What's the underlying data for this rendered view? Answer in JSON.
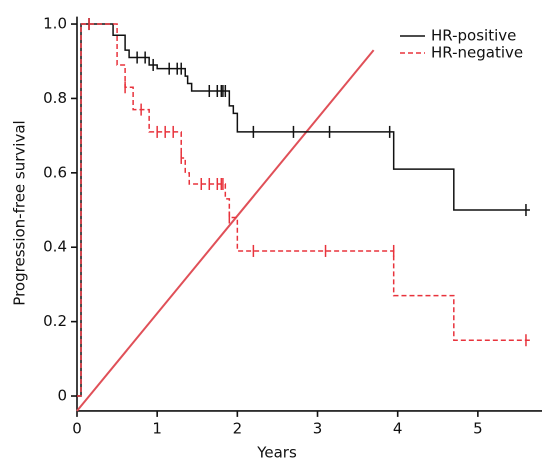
{
  "chart_data": {
    "type": "step",
    "x_label": "Years",
    "y_label": "Progression-free survival",
    "xlim": [
      0,
      5.8
    ],
    "ylim": [
      -0.04,
      1.02
    ],
    "xticks": [
      0,
      1,
      2,
      3,
      4,
      5
    ],
    "yticks": [
      0,
      {
        "value": 0.2,
        "label": "0.2"
      },
      {
        "value": 0.4,
        "label": "0.4"
      },
      {
        "value": 0.6,
        "label": "0.6"
      },
      {
        "value": 0.8,
        "label": "0.8"
      },
      {
        "value": 1,
        "label": "1.0"
      }
    ],
    "legend": "top-right",
    "series": [
      {
        "name": "HR-positive",
        "color": "#111111",
        "dash": false,
        "x": [
          0,
          0.05,
          0.45,
          0.6,
          0.65,
          0.9,
          1.0,
          1.35,
          1.38,
          1.43,
          1.9,
          1.95,
          2.0,
          3.95,
          4.7,
          5.65
        ],
        "values": [
          0,
          1.0,
          0.97,
          0.93,
          0.91,
          0.89,
          0.88,
          0.86,
          0.84,
          0.82,
          0.78,
          0.76,
          0.71,
          0.61,
          0.5,
          0.5
        ],
        "censor_x": [
          0.15,
          0.75,
          0.85,
          0.95,
          1.15,
          1.25,
          1.3,
          1.65,
          1.75,
          1.8,
          1.82,
          1.85,
          2.2,
          2.7,
          3.15,
          3.9,
          5.6
        ],
        "censor_values": [
          1.0,
          0.91,
          0.91,
          0.89,
          0.88,
          0.88,
          0.88,
          0.82,
          0.82,
          0.82,
          0.82,
          0.82,
          0.71,
          0.71,
          0.71,
          0.71,
          0.5
        ]
      },
      {
        "name": "HR-negative",
        "color": "#e8333c",
        "dash": true,
        "x": [
          0,
          0.05,
          0.5,
          0.6,
          0.7,
          0.9,
          1.3,
          1.35,
          1.4,
          1.85,
          1.9,
          2.0,
          3.95,
          4.7,
          5.65
        ],
        "values": [
          0,
          1.0,
          0.89,
          0.83,
          0.77,
          0.71,
          0.64,
          0.6,
          0.57,
          0.53,
          0.48,
          0.39,
          0.27,
          0.15,
          0.15
        ],
        "censor_x": [
          0.15,
          0.6,
          0.8,
          1.0,
          1.1,
          1.2,
          1.3,
          1.55,
          1.65,
          1.75,
          1.8,
          1.82,
          1.9,
          2.2,
          3.1,
          3.95,
          5.6
        ],
        "censor_values": [
          1.0,
          0.83,
          0.77,
          0.71,
          0.71,
          0.71,
          0.64,
          0.57,
          0.57,
          0.57,
          0.57,
          0.57,
          0.48,
          0.39,
          0.39,
          0.39,
          0.15
        ]
      }
    ],
    "reference_line": {
      "color": "#e05058",
      "x": [
        0,
        3.7
      ],
      "values": [
        -0.04,
        0.93
      ]
    }
  }
}
